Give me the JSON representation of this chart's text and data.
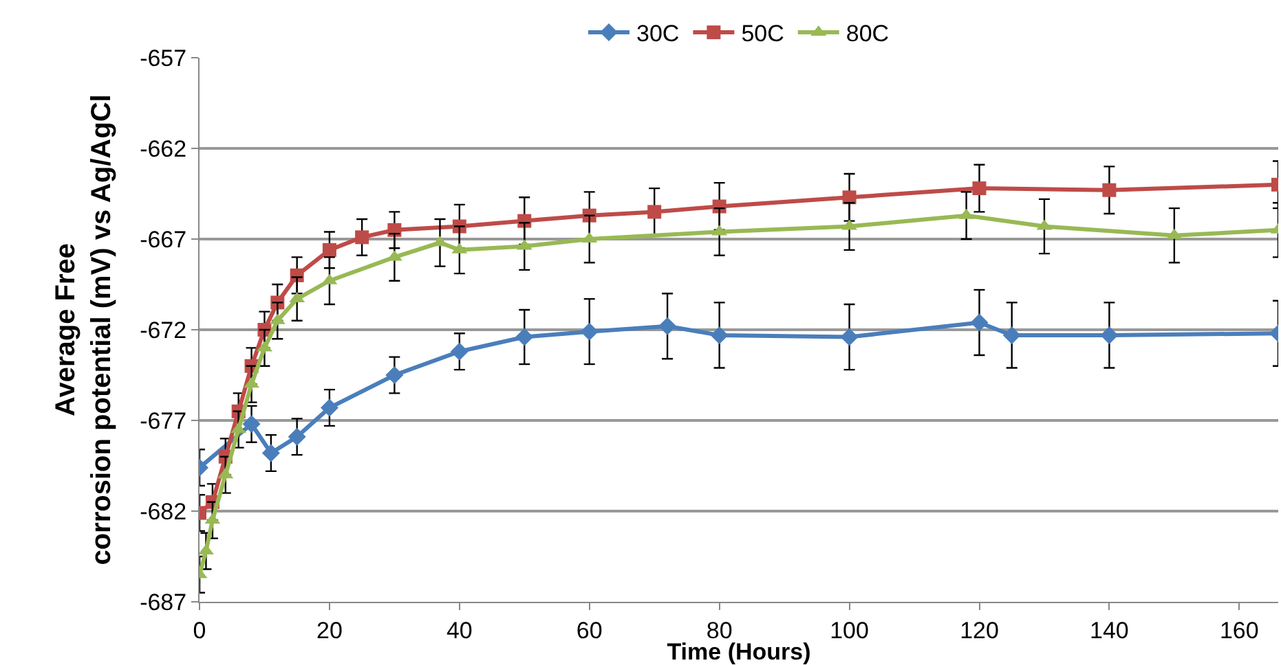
{
  "chart_data": {
    "type": "line",
    "xlabel": "Time (Hours)",
    "ylabel": "Average Free corrosion potential (mV) vs Ag/AgCl",
    "xlim": [
      0,
      166
    ],
    "ylim": [
      -687,
      -657
    ],
    "xticks": [
      0,
      20,
      40,
      60,
      80,
      100,
      120,
      140,
      160
    ],
    "yticks": [
      -687,
      -682,
      -677,
      -672,
      -667,
      -662,
      -657
    ],
    "grid": "y",
    "legend": "top",
    "line_style": "solid",
    "series": [
      {
        "name": "30C",
        "color": "#4a7ebb",
        "marker": "diamond",
        "x": [
          0,
          8,
          11,
          15,
          20,
          30,
          40,
          50,
          60,
          72,
          80,
          100,
          120,
          125,
          140,
          166
        ],
        "values": [
          -679.6,
          -677.2,
          -678.8,
          -677.9,
          -676.3,
          -674.5,
          -673.2,
          -672.4,
          -672.1,
          -671.8,
          -672.3,
          -672.4,
          -671.6,
          -672.3,
          -672.3,
          -672.2
        ],
        "errors": [
          1,
          1,
          1,
          1,
          1,
          1,
          1,
          1.5,
          1.8,
          1.8,
          1.8,
          1.8,
          1.8,
          1.8,
          1.8,
          1.8
        ]
      },
      {
        "name": "50C",
        "color": "#be4b48",
        "marker": "square",
        "x": [
          0,
          2,
          4,
          6,
          8,
          10,
          12,
          15,
          20,
          25,
          30,
          40,
          50,
          60,
          70,
          80,
          100,
          120,
          140,
          166
        ],
        "values": [
          -682.1,
          -681.5,
          -679,
          -676.5,
          -674,
          -672,
          -670.5,
          -669,
          -667.6,
          -666.9,
          -666.5,
          -666.3,
          -666,
          -665.7,
          -665.5,
          -665.2,
          -664.7,
          -664.2,
          -664.3,
          -664
        ],
        "errors": [
          1,
          1,
          1,
          1,
          1,
          1,
          1,
          1,
          1,
          1,
          1,
          1.2,
          1.3,
          1.3,
          1.3,
          1.3,
          1.3,
          1.3,
          1.3,
          1.3
        ]
      },
      {
        "name": "80C",
        "color": "#98b954",
        "marker": "triangle",
        "x": [
          0,
          1,
          2,
          4,
          6,
          8,
          10,
          12,
          15,
          20,
          30,
          37,
          40,
          50,
          60,
          80,
          100,
          118,
          130,
          150,
          166
        ],
        "values": [
          -685.5,
          -684.2,
          -682.5,
          -680,
          -677.5,
          -675,
          -673,
          -671.5,
          -670.3,
          -669.3,
          -668,
          -667.2,
          -667.6,
          -667.4,
          -667,
          -666.6,
          -666.3,
          -665.7,
          -666.3,
          -666.8,
          -666.5
        ],
        "errors": [
          1,
          1,
          1,
          1,
          1,
          1,
          1,
          1,
          1.2,
          1.3,
          1.3,
          1.3,
          1.3,
          1.3,
          1.3,
          1.3,
          1.3,
          1.3,
          1.5,
          1.5,
          1.5
        ]
      }
    ]
  }
}
